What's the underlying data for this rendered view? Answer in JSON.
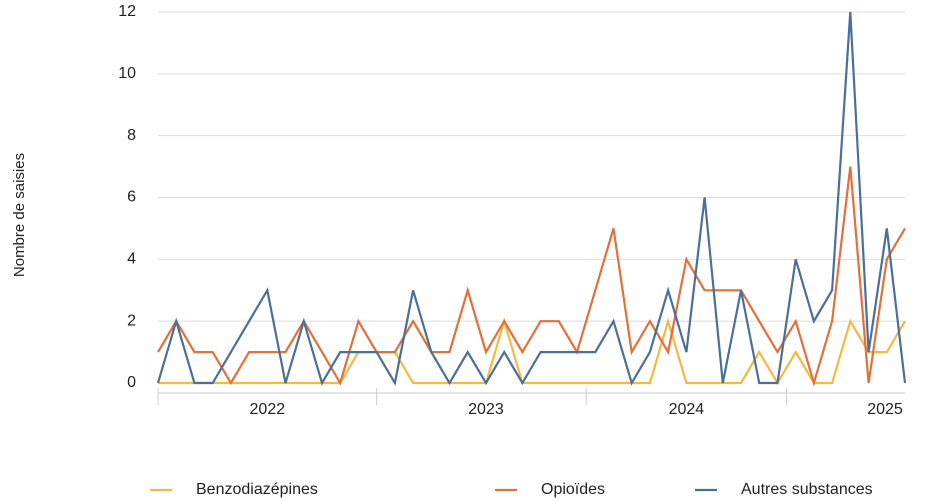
{
  "chart_data": {
    "type": "line",
    "y_label": "Nombre de saisies",
    "categories": [
      null,
      null,
      null,
      null,
      null,
      null,
      "2022",
      null,
      null,
      null,
      null,
      null,
      null,
      null,
      null,
      null,
      null,
      null,
      "2023",
      null,
      null,
      null,
      null,
      null,
      null,
      null,
      null,
      null,
      null,
      "2024",
      null,
      null,
      null,
      null,
      null,
      null,
      null,
      null,
      null,
      null,
      "2025",
      null
    ],
    "series": [
      {
        "name": "Benzodiazépines",
        "color": "#f5b942",
        "values": [
          0,
          0,
          0,
          0,
          0,
          0,
          0,
          0,
          0,
          0,
          0,
          1,
          1,
          1,
          0,
          0,
          0,
          0,
          0,
          2,
          0,
          0,
          0,
          0,
          0,
          0,
          0,
          0,
          2,
          0,
          0,
          0,
          0,
          1,
          0,
          1,
          0,
          0,
          2,
          1,
          1,
          2
        ]
      },
      {
        "name": "Opioïdes",
        "color": "#e3703a",
        "values": [
          1,
          2,
          1,
          1,
          0,
          1,
          1,
          1,
          2,
          1,
          0,
          2,
          1,
          1,
          2,
          1,
          1,
          3,
          1,
          2,
          1,
          2,
          2,
          1,
          3,
          5,
          1,
          2,
          1,
          4,
          3,
          3,
          3,
          2,
          1,
          2,
          0,
          2,
          7,
          0,
          4,
          5
        ]
      },
      {
        "name": "Autres substances",
        "color": "#4a6f9a",
        "values": [
          0,
          2,
          0,
          0,
          1,
          2,
          3,
          0,
          2,
          0,
          1,
          1,
          1,
          0,
          3,
          1,
          0,
          1,
          0,
          1,
          0,
          1,
          1,
          1,
          1,
          2,
          0,
          1,
          3,
          1,
          6,
          0,
          3,
          0,
          0,
          4,
          2,
          3,
          12,
          1,
          5,
          0
        ]
      }
    ],
    "ylim": [
      0,
      12
    ],
    "yticks": [
      0,
      2,
      4,
      6,
      8,
      10,
      12
    ],
    "grid": true
  }
}
